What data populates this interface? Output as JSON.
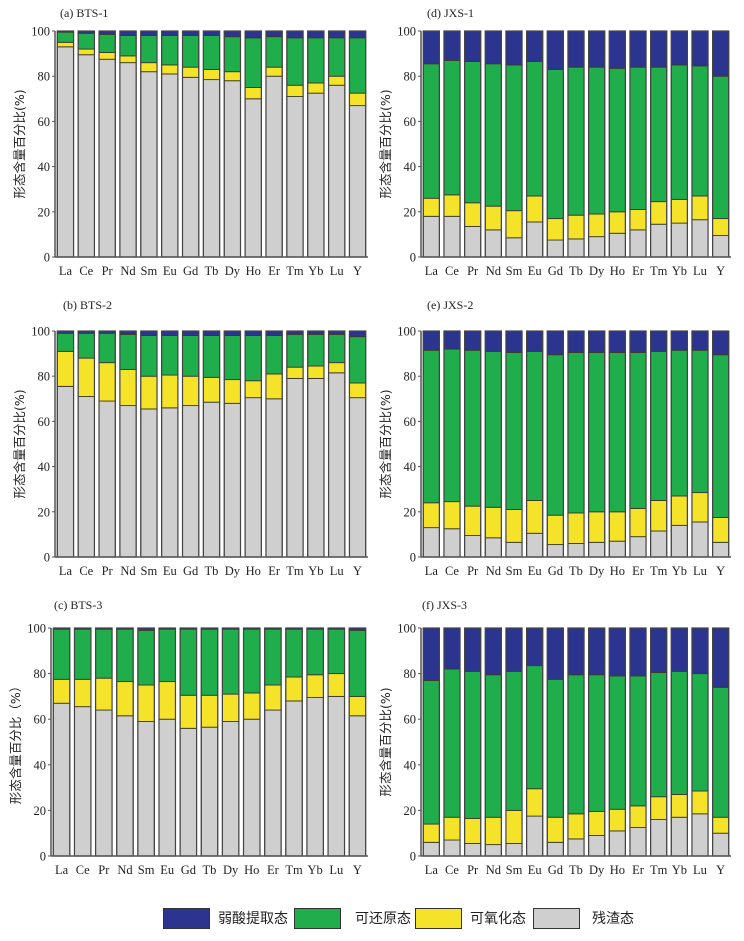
{
  "figure": {
    "ylabel": "形态含量百分比(%)",
    "yticks": [
      "0",
      "20",
      "40",
      "60",
      "80",
      "100"
    ],
    "legend": [
      {
        "key": "weak_acid",
        "label": "弱酸提取态",
        "color": "#2b3590"
      },
      {
        "key": "reducible",
        "label": "可还原态",
        "color": "#1fae4b"
      },
      {
        "key": "oxidizable",
        "label": "可氧化态",
        "color": "#f5e32a"
      },
      {
        "key": "residual",
        "label": "残渣态",
        "color": "#cfcfcf"
      }
    ]
  },
  "chart_data": [
    {
      "type": "bar",
      "stacked": true,
      "title": "(a)  BTS-1",
      "ylabel": "形态含量百分比(%)",
      "ylim": [
        0,
        100
      ],
      "categories": [
        "La",
        "Ce",
        "Pr",
        "Nd",
        "Sm",
        "Eu",
        "Gd",
        "Tb",
        "Dy",
        "Ho",
        "Er",
        "Tm",
        "Yb",
        "Lu",
        "Y"
      ],
      "series": [
        {
          "name": "残渣态",
          "values": [
            93,
            89.5,
            87.5,
            86,
            82,
            81,
            79.5,
            78.5,
            78,
            70,
            80,
            71,
            72.5,
            76,
            67
          ]
        },
        {
          "name": "可氧化态",
          "values": [
            2,
            2.5,
            3,
            3,
            4,
            4,
            4.5,
            4.5,
            4,
            5,
            4,
            5,
            4.5,
            4,
            5.5
          ]
        },
        {
          "name": "可还原态",
          "values": [
            4.5,
            7,
            8,
            9,
            12,
            13,
            14,
            15,
            15.5,
            22,
            13.5,
            21,
            20,
            17,
            24.5
          ]
        },
        {
          "name": "弱酸提取态",
          "values": [
            0.5,
            1,
            1.5,
            2,
            2,
            2,
            2,
            2,
            2.5,
            3,
            2.5,
            3,
            3,
            3,
            3
          ]
        }
      ]
    },
    {
      "type": "bar",
      "stacked": true,
      "title": "(b) BTS-2",
      "ylabel": "形态含量百分比(%)",
      "ylim": [
        0,
        100
      ],
      "categories": [
        "La",
        "Ce",
        "Pr",
        "Nd",
        "Sm",
        "Eu",
        "Gd",
        "Tb",
        "Dy",
        "Ho",
        "Er",
        "Tm",
        "Yb",
        "Lu",
        "Y"
      ],
      "series": [
        {
          "name": "残渣态",
          "values": [
            75.5,
            71,
            69,
            67,
            65.5,
            66,
            67,
            68.5,
            68,
            70.5,
            70,
            79,
            79,
            81.5,
            70.5
          ]
        },
        {
          "name": "可氧化态",
          "values": [
            15.5,
            17,
            17,
            16,
            14.5,
            14.5,
            13,
            11,
            10.5,
            7.5,
            11,
            5,
            5.5,
            4.5,
            6.5
          ]
        },
        {
          "name": "可还原态",
          "values": [
            8,
            11,
            13,
            15.5,
            18,
            17.5,
            18,
            18.5,
            19.5,
            20,
            17,
            14.5,
            14,
            12.5,
            20.5
          ]
        },
        {
          "name": "弱酸提取态",
          "values": [
            1,
            1,
            1,
            1.5,
            2,
            2,
            2,
            2,
            2,
            2,
            2,
            1.5,
            1.5,
            1.5,
            2.5
          ]
        }
      ]
    },
    {
      "type": "bar",
      "stacked": true,
      "title": "(c)  BTS-3",
      "ylabel": "形态含量百分比（%）",
      "ylim": [
        0,
        100
      ],
      "categories": [
        "La",
        "Ce",
        "Pr",
        "Nd",
        "Sm",
        "Eu",
        "Gd",
        "Tb",
        "Dy",
        "Ho",
        "Er",
        "Tm",
        "Yb",
        "Lu",
        "Y"
      ],
      "series": [
        {
          "name": "残渣态",
          "values": [
            67,
            65.5,
            64,
            61.5,
            59,
            60,
            56,
            56.5,
            59,
            60,
            64,
            68,
            69.5,
            70,
            61.5
          ]
        },
        {
          "name": "可氧化态",
          "values": [
            10.5,
            12,
            14,
            15,
            16,
            16.5,
            14.5,
            14,
            12,
            11.5,
            11,
            10.5,
            10,
            10,
            8.5
          ]
        },
        {
          "name": "可还原态",
          "values": [
            22,
            22,
            21.5,
            23,
            24,
            23,
            29,
            29,
            28.5,
            28,
            24.5,
            21,
            20,
            19.5,
            29
          ]
        },
        {
          "name": "弱酸提取态",
          "values": [
            0.5,
            0.5,
            0.5,
            0.5,
            1,
            0.5,
            0.5,
            0.5,
            0.5,
            0.5,
            0.5,
            0.5,
            0.5,
            0.5,
            1
          ]
        }
      ]
    },
    {
      "type": "bar",
      "stacked": true,
      "title": "(d) JXS-1",
      "ylabel": "形态含量百分比(%)",
      "ylim": [
        0,
        100
      ],
      "categories": [
        "La",
        "Ce",
        "Pr",
        "Nd",
        "Sm",
        "Eu",
        "Gd",
        "Tb",
        "Dy",
        "Ho",
        "Er",
        "Tm",
        "Yb",
        "Lu",
        "Y"
      ],
      "series": [
        {
          "name": "残渣态",
          "values": [
            18,
            18,
            13.5,
            12,
            8.5,
            15.5,
            7.5,
            8,
            9,
            10.5,
            12,
            14.5,
            15,
            16.5,
            9.5
          ]
        },
        {
          "name": "可氧化态",
          "values": [
            8,
            9.5,
            10.5,
            10.5,
            12,
            11.5,
            9.5,
            10.5,
            10,
            9.5,
            9,
            10,
            10.5,
            10.5,
            7.5
          ]
        },
        {
          "name": "可还原态",
          "values": [
            59.5,
            59.5,
            62.5,
            63,
            64.5,
            59.5,
            66,
            65.5,
            65,
            63.5,
            63,
            59.5,
            59.5,
            57.5,
            63
          ]
        },
        {
          "name": "弱酸提取态",
          "values": [
            14.5,
            13,
            13.5,
            14.5,
            15,
            13.5,
            17,
            16,
            16,
            16.5,
            16,
            16,
            15,
            15.5,
            20
          ]
        }
      ]
    },
    {
      "type": "bar",
      "stacked": true,
      "title": "(e) JXS-2",
      "ylabel": "形态含量百分比(%)",
      "ylim": [
        0,
        100
      ],
      "categories": [
        "La",
        "Ce",
        "Pr",
        "Nd",
        "Sm",
        "Eu",
        "Gd",
        "Tb",
        "Dy",
        "Ho",
        "Er",
        "Tm",
        "Yb",
        "Lu",
        "Y"
      ],
      "series": [
        {
          "name": "残渣态",
          "values": [
            13,
            12.5,
            9.5,
            8.5,
            6.5,
            10.5,
            5.5,
            6,
            6.5,
            7,
            9,
            11.5,
            14,
            15.5,
            6.5
          ]
        },
        {
          "name": "可氧化态",
          "values": [
            11,
            12,
            13,
            13.5,
            14.5,
            14.5,
            13,
            13.5,
            13.5,
            13,
            12.5,
            13.5,
            13,
            13,
            11
          ]
        },
        {
          "name": "可还原态",
          "values": [
            67.5,
            67.5,
            69,
            69,
            69.5,
            66,
            71,
            71,
            70.5,
            70.5,
            69,
            66,
            64.5,
            63,
            72
          ]
        },
        {
          "name": "弱酸提取态",
          "values": [
            8.5,
            8,
            8.5,
            9,
            9.5,
            9,
            10.5,
            9.5,
            9.5,
            9.5,
            9.5,
            9,
            8.5,
            8.5,
            10.5
          ]
        }
      ]
    },
    {
      "type": "bar",
      "stacked": true,
      "title": "(f)  JXS-3",
      "ylabel": "形态含量百分比(%)",
      "ylim": [
        0,
        100
      ],
      "categories": [
        "La",
        "Ce",
        "Pr",
        "Nd",
        "Sm",
        "Eu",
        "Gd",
        "Tb",
        "Dy",
        "Ho",
        "Er",
        "Tm",
        "Yb",
        "Lu",
        "Y"
      ],
      "series": [
        {
          "name": "残渣态",
          "values": [
            6,
            7,
            5.5,
            5,
            5.5,
            17.5,
            6,
            7.5,
            9,
            11,
            12.5,
            16,
            17,
            18.5,
            10
          ]
        },
        {
          "name": "可氧化态",
          "values": [
            8,
            10,
            11,
            12,
            14.5,
            12,
            11,
            11,
            10.5,
            9.5,
            9.5,
            10,
            10,
            10,
            7
          ]
        },
        {
          "name": "可还原态",
          "values": [
            63,
            65,
            64.5,
            62.5,
            61,
            54,
            60.5,
            61,
            60,
            58.5,
            57,
            54.5,
            54,
            51.5,
            57
          ]
        },
        {
          "name": "弱酸提取态",
          "values": [
            23,
            18,
            19,
            20.5,
            19,
            16.5,
            22.5,
            20.5,
            20.5,
            21,
            21,
            19.5,
            19,
            20,
            26
          ]
        }
      ]
    }
  ]
}
